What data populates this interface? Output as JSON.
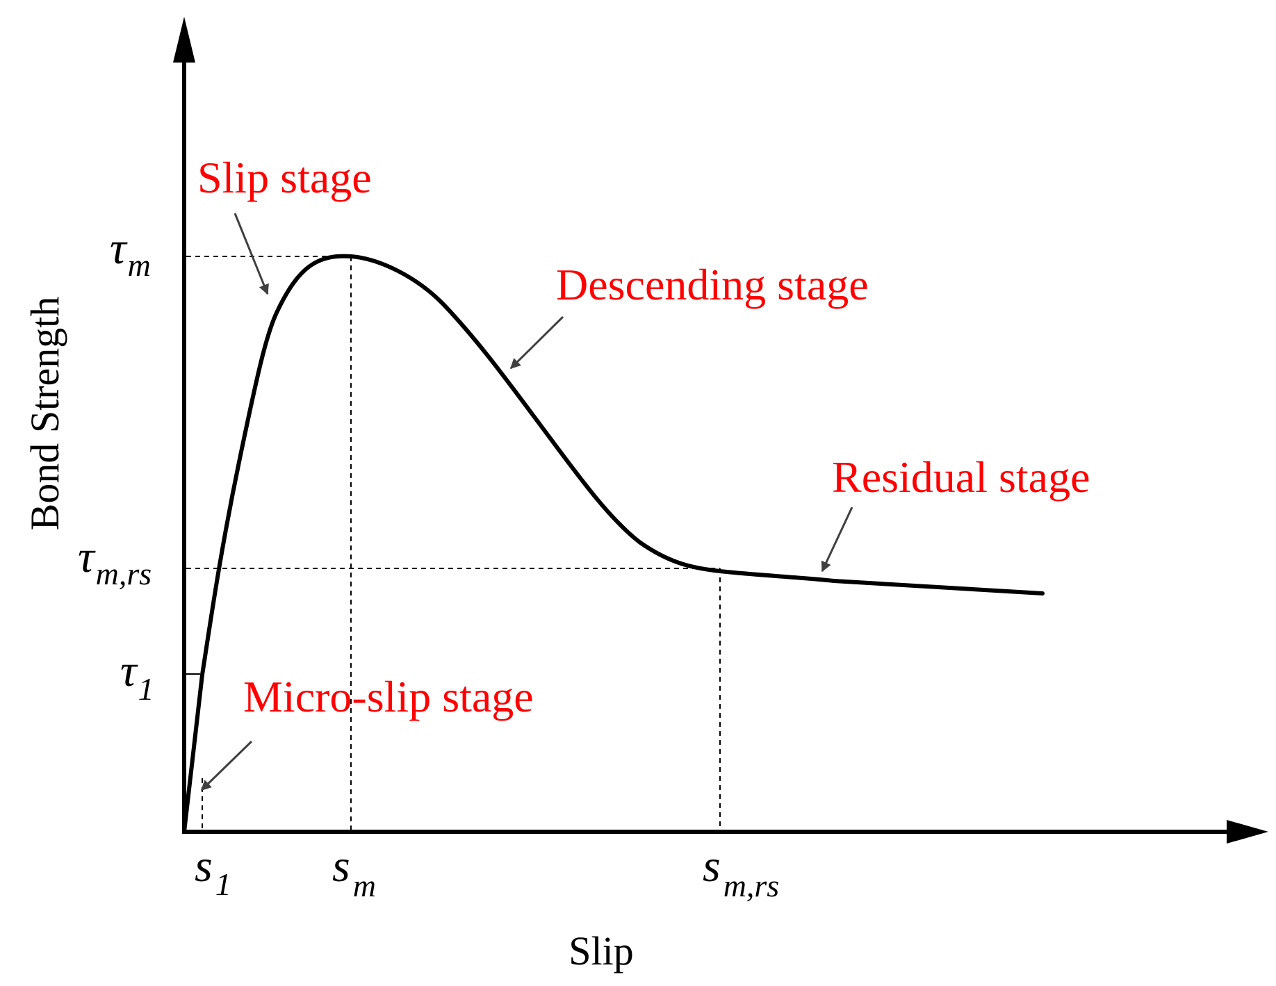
{
  "chart_data": {
    "type": "line",
    "title": "",
    "xlabel": "Slip",
    "ylabel": "Bond Strength",
    "x_ticks": [
      {
        "id": "s1",
        "main": "s",
        "sub": "1"
      },
      {
        "id": "sm",
        "main": "s",
        "sub": "m"
      },
      {
        "id": "smrs",
        "main": "s",
        "sub": "m,rs"
      }
    ],
    "y_ticks": [
      {
        "id": "tau1",
        "main": "τ",
        "sub": "1"
      },
      {
        "id": "taumrs",
        "main": "τ",
        "sub": "m,rs"
      },
      {
        "id": "taum",
        "main": "τ",
        "sub": "m"
      }
    ],
    "annotations": [
      {
        "id": "micro-slip",
        "text": "Micro-slip stage"
      },
      {
        "id": "slip",
        "text": "Slip stage"
      },
      {
        "id": "descending",
        "text": "Descending stage"
      },
      {
        "id": "residual",
        "text": "Residual stage"
      }
    ],
    "grid": false,
    "legend": "none",
    "colors": {
      "curve": "#000000",
      "annotation_text": "#ff0000",
      "annotation_arrow": "#404040"
    }
  }
}
